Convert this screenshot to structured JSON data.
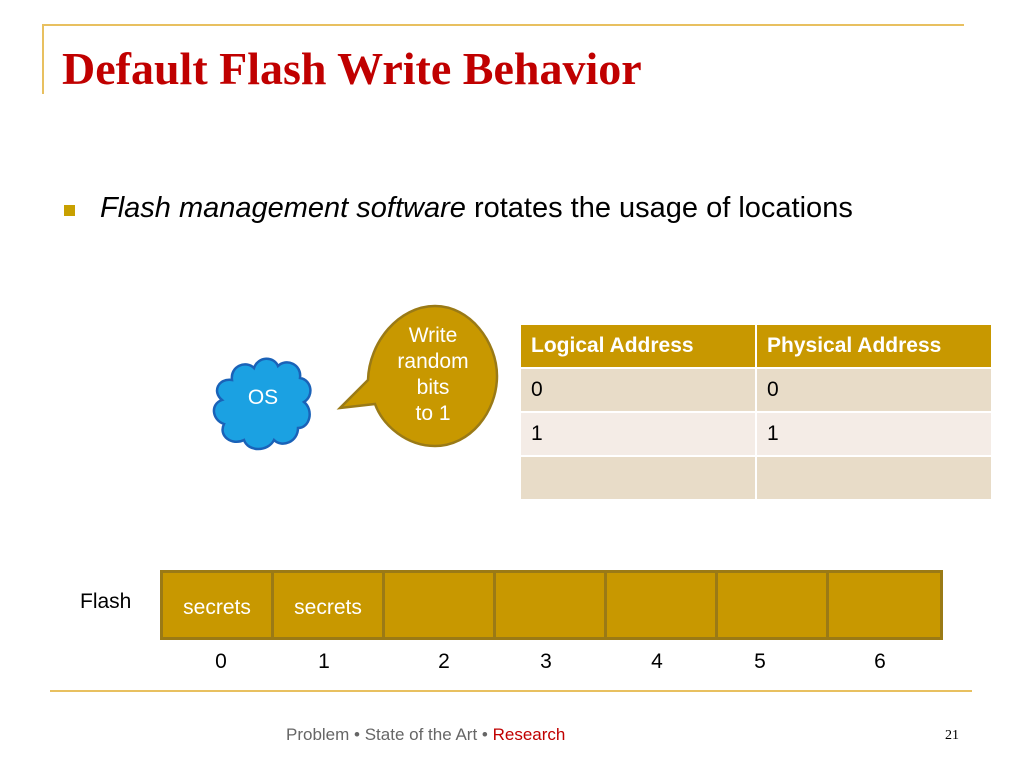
{
  "slide": {
    "title": "Default Flash Write Behavior",
    "bullet": {
      "italic_text": "Flash management software",
      "rest_text": " rotates the usage of locations"
    },
    "os_label": "OS",
    "callout_lines": [
      "Write",
      "random",
      "bits",
      "to 1"
    ],
    "table": {
      "headers": [
        "Logical Address",
        "Physical Address"
      ],
      "rows": [
        [
          "0",
          "0"
        ],
        [
          "1",
          "1"
        ],
        [
          "",
          ""
        ]
      ]
    },
    "flash": {
      "label": "Flash",
      "cells": [
        "secrets",
        "secrets",
        "",
        "",
        "",
        "",
        ""
      ],
      "indices": [
        "0",
        "1",
        "2",
        "3",
        "4",
        "5",
        "6"
      ]
    },
    "footer": {
      "part1": "Problem",
      "sep": " • ",
      "part2": "State of the Art",
      "part3": "Research"
    },
    "page_number": "21"
  },
  "colors": {
    "title": "#c00000",
    "accent": "#c89800",
    "os_cloud": "#1ba1e2",
    "callout": "#c89800",
    "footer_highlight": "#c00000"
  }
}
